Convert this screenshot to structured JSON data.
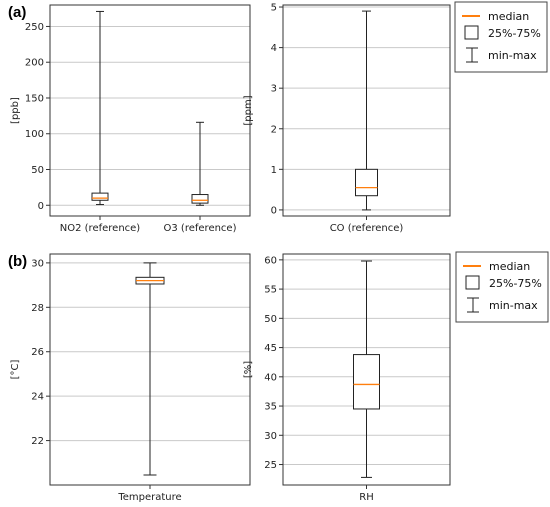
{
  "panel_labels": [
    "(a)",
    "(b)"
  ],
  "legend": {
    "median": "median",
    "iqr": "25%-75%",
    "range": "min-max",
    "median_color": "#ff7f0e"
  },
  "chart_data": [
    {
      "type": "box",
      "ylabel": "[ppb]",
      "ylim": [
        -15,
        280
      ],
      "yticks": [
        0,
        50,
        100,
        150,
        200,
        250
      ],
      "grid": "horizontal",
      "categories": [
        "NO2 (reference)",
        "O3 (reference)"
      ],
      "boxes": [
        {
          "min": 1,
          "q1": 7,
          "median": 10,
          "q3": 17,
          "max": 271
        },
        {
          "min": 0,
          "q1": 3,
          "median": 7,
          "q3": 15,
          "max": 116
        }
      ]
    },
    {
      "type": "box",
      "ylabel": "[ppm]",
      "ylim": [
        -0.15,
        5.05
      ],
      "yticks": [
        0,
        1,
        2,
        3,
        4,
        5
      ],
      "grid": "horizontal",
      "categories": [
        "CO (reference)"
      ],
      "boxes": [
        {
          "min": 0.0,
          "q1": 0.35,
          "median": 0.55,
          "q3": 1.0,
          "max": 4.9
        }
      ]
    },
    {
      "type": "box",
      "ylabel": "[°C]",
      "ylim": [
        20.0,
        30.4
      ],
      "yticks": [
        22,
        24,
        26,
        28,
        30
      ],
      "grid": "horizontal",
      "categories": [
        "Temperature"
      ],
      "boxes": [
        {
          "min": 20.45,
          "q1": 29.05,
          "median": 29.2,
          "q3": 29.35,
          "max": 30.0
        }
      ]
    },
    {
      "type": "box",
      "ylabel": "[%]",
      "ylim": [
        21.5,
        61.0
      ],
      "yticks": [
        25,
        30,
        35,
        40,
        45,
        50,
        55,
        60
      ],
      "grid": "horizontal",
      "categories": [
        "RH"
      ],
      "boxes": [
        {
          "min": 22.8,
          "q1": 34.5,
          "median": 38.7,
          "q3": 43.8,
          "max": 59.8
        }
      ]
    }
  ]
}
